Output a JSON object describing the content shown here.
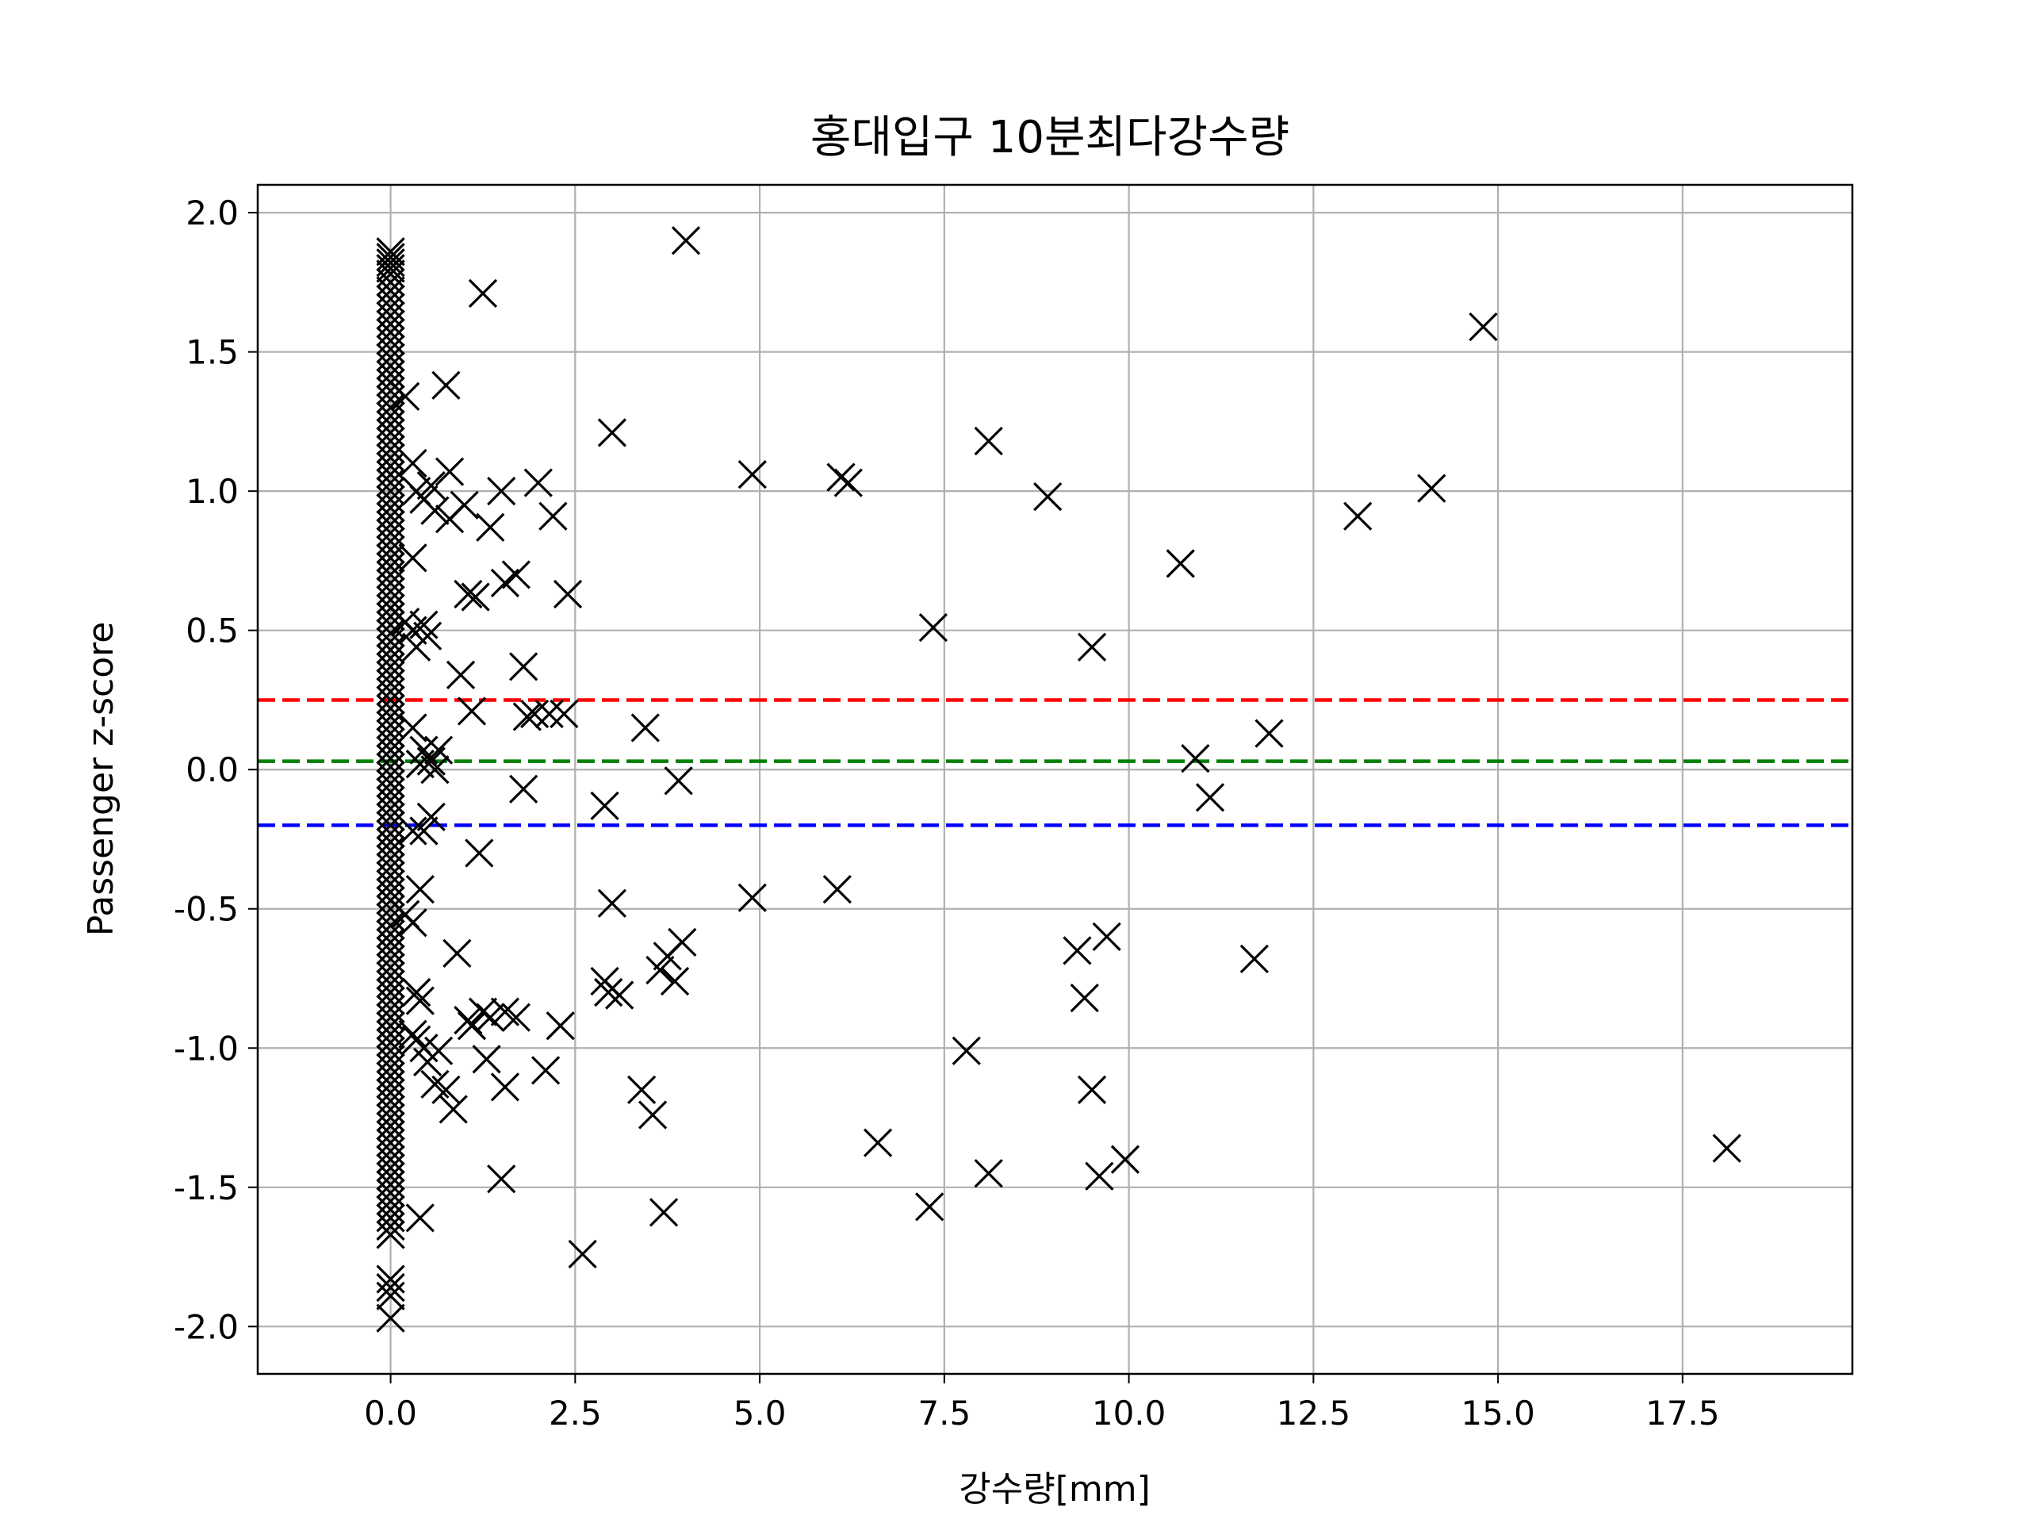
{
  "chart_data": {
    "type": "scatter",
    "title": "홍대입구 10분최다강수량",
    "xlabel": "강수량[mm]",
    "ylabel": "Passenger z-score",
    "xlim": [
      -1.8,
      19.8
    ],
    "ylim": [
      -2.17,
      2.1
    ],
    "xticks": [
      0.0,
      2.5,
      5.0,
      7.5,
      10.0,
      12.5,
      15.0,
      17.5
    ],
    "xtick_labels": [
      "0.0",
      "2.5",
      "5.0",
      "7.5",
      "10.0",
      "12.5",
      "15.0",
      "17.5"
    ],
    "yticks": [
      2.0,
      1.5,
      1.0,
      0.5,
      0.0,
      -0.5,
      -1.0,
      -1.5,
      -2.0
    ],
    "ytick_labels": [
      "2.0",
      "1.5",
      "1.0",
      "0.5",
      "0.0",
      "-0.5",
      "-1.0",
      "-1.5",
      "-2.0"
    ],
    "grid": true,
    "marker": "x",
    "marker_color": "#000000",
    "hlines": [
      {
        "y": 0.25,
        "color": "#ff0000",
        "style": "dashed"
      },
      {
        "y": 0.03,
        "color": "#008000",
        "style": "dashed"
      },
      {
        "y": -0.2,
        "color": "#0000ff",
        "style": "dashed"
      }
    ],
    "zero_cluster": {
      "x": 0.0,
      "y": [
        1.86,
        1.84,
        1.82,
        1.8,
        1.78,
        1.75,
        1.72,
        1.69,
        1.66,
        1.63,
        1.6,
        1.57,
        1.54,
        1.51,
        1.48,
        1.45,
        1.42,
        1.39,
        1.36,
        1.33,
        1.3,
        1.27,
        1.24,
        1.21,
        1.18,
        1.15,
        1.12,
        1.09,
        1.06,
        1.03,
        1.0,
        0.97,
        0.94,
        0.91,
        0.88,
        0.85,
        0.82,
        0.79,
        0.76,
        0.73,
        0.7,
        0.67,
        0.64,
        0.61,
        0.58,
        0.55,
        0.52,
        0.49,
        0.46,
        0.43,
        0.4,
        0.37,
        0.34,
        0.31,
        0.28,
        0.25,
        0.22,
        0.19,
        0.16,
        0.13,
        0.1,
        0.07,
        0.04,
        0.01,
        -0.02,
        -0.05,
        -0.08,
        -0.11,
        -0.14,
        -0.17,
        -0.2,
        -0.23,
        -0.26,
        -0.29,
        -0.32,
        -0.35,
        -0.38,
        -0.41,
        -0.44,
        -0.47,
        -0.5,
        -0.53,
        -0.56,
        -0.59,
        -0.62,
        -0.65,
        -0.68,
        -0.71,
        -0.74,
        -0.77,
        -0.8,
        -0.83,
        -0.86,
        -0.89,
        -0.92,
        -0.95,
        -0.98,
        -1.01,
        -1.04,
        -1.07,
        -1.1,
        -1.13,
        -1.16,
        -1.19,
        -1.22,
        -1.25,
        -1.28,
        -1.31,
        -1.34,
        -1.37,
        -1.4,
        -1.43,
        -1.46,
        -1.49,
        -1.52,
        -1.55,
        -1.58,
        -1.61,
        -1.64,
        -1.67,
        -1.83,
        -1.86,
        -1.89,
        -1.97
      ]
    },
    "series": [
      {
        "points": [
          [
            0.2,
            1.34
          ],
          [
            0.3,
            1.1
          ],
          [
            0.35,
            1.0
          ],
          [
            0.45,
            0.97
          ],
          [
            0.55,
            1.02
          ],
          [
            0.6,
            0.93
          ],
          [
            0.3,
            0.76
          ],
          [
            0.2,
            0.53
          ],
          [
            0.3,
            0.5
          ],
          [
            0.45,
            0.52
          ],
          [
            0.5,
            0.48
          ],
          [
            0.35,
            0.44
          ],
          [
            0.3,
            0.15
          ],
          [
            0.45,
            0.07
          ],
          [
            0.55,
            0.03
          ],
          [
            0.6,
            0.0
          ],
          [
            0.65,
            0.07
          ],
          [
            0.4,
            0.02
          ],
          [
            0.3,
            -0.22
          ],
          [
            0.45,
            -0.22
          ],
          [
            0.55,
            -0.17
          ],
          [
            0.4,
            -0.43
          ],
          [
            0.2,
            -0.52
          ],
          [
            0.3,
            -0.55
          ],
          [
            0.35,
            -0.8
          ],
          [
            0.4,
            -0.83
          ],
          [
            0.3,
            -0.95
          ],
          [
            0.35,
            -0.97
          ],
          [
            0.45,
            -1.0
          ],
          [
            0.5,
            -1.05
          ],
          [
            0.6,
            -1.13
          ],
          [
            0.65,
            -1.01
          ],
          [
            0.75,
            -1.15
          ],
          [
            0.85,
            -1.22
          ],
          [
            0.4,
            -1.61
          ],
          [
            0.75,
            1.38
          ],
          [
            0.8,
            1.07
          ],
          [
            1.0,
            0.95
          ],
          [
            0.8,
            0.9
          ],
          [
            1.5,
            1.0
          ],
          [
            1.35,
            0.87
          ],
          [
            1.25,
            1.71
          ],
          [
            1.05,
            0.63
          ],
          [
            1.15,
            0.62
          ],
          [
            1.55,
            0.67
          ],
          [
            1.7,
            0.7
          ],
          [
            0.95,
            0.34
          ],
          [
            1.1,
            0.21
          ],
          [
            1.8,
            0.37
          ],
          [
            1.85,
            0.19
          ],
          [
            1.95,
            0.2
          ],
          [
            1.8,
            -0.07
          ],
          [
            1.2,
            -0.3
          ],
          [
            0.9,
            -0.66
          ],
          [
            1.05,
            -0.9
          ],
          [
            1.1,
            -0.92
          ],
          [
            1.25,
            -0.87
          ],
          [
            1.35,
            -0.89
          ],
          [
            1.55,
            -0.87
          ],
          [
            1.7,
            -0.89
          ],
          [
            1.3,
            -1.04
          ],
          [
            1.55,
            -1.14
          ],
          [
            1.5,
            -1.47
          ],
          [
            2.0,
            1.03
          ],
          [
            2.2,
            0.91
          ],
          [
            2.4,
            0.63
          ],
          [
            2.35,
            0.2
          ],
          [
            2.15,
            0.2
          ],
          [
            2.3,
            -0.92
          ],
          [
            2.1,
            -1.08
          ],
          [
            2.6,
            -1.74
          ],
          [
            3.0,
            1.21
          ],
          [
            2.9,
            -0.13
          ],
          [
            3.0,
            -0.48
          ],
          [
            2.9,
            -0.76
          ],
          [
            2.95,
            -0.8
          ],
          [
            3.1,
            -0.81
          ],
          [
            3.45,
            0.15
          ],
          [
            3.4,
            -1.15
          ],
          [
            3.55,
            -1.24
          ],
          [
            3.7,
            -1.59
          ],
          [
            3.65,
            -0.72
          ],
          [
            3.75,
            -0.67
          ],
          [
            3.85,
            -0.76
          ],
          [
            3.95,
            -0.62
          ],
          [
            3.9,
            -0.04
          ],
          [
            4.0,
            1.9
          ],
          [
            4.9,
            1.06
          ],
          [
            4.9,
            -0.46
          ],
          [
            6.1,
            1.05
          ],
          [
            6.2,
            1.03
          ],
          [
            6.05,
            -0.43
          ],
          [
            6.6,
            -1.34
          ],
          [
            7.35,
            0.51
          ],
          [
            7.3,
            -1.57
          ],
          [
            7.8,
            -1.01
          ],
          [
            8.1,
            1.18
          ],
          [
            8.1,
            -1.45
          ],
          [
            8.9,
            0.98
          ],
          [
            9.5,
            0.44
          ],
          [
            9.3,
            -0.65
          ],
          [
            9.4,
            -0.82
          ],
          [
            9.5,
            -1.15
          ],
          [
            9.7,
            -0.6
          ],
          [
            9.6,
            -1.46
          ],
          [
            9.95,
            -1.4
          ],
          [
            10.7,
            0.74
          ],
          [
            10.9,
            0.04
          ],
          [
            11.1,
            -0.1
          ],
          [
            11.7,
            -0.68
          ],
          [
            11.9,
            0.13
          ],
          [
            13.1,
            0.91
          ],
          [
            14.1,
            1.01
          ],
          [
            14.8,
            1.59
          ],
          [
            18.1,
            -1.36
          ]
        ]
      }
    ]
  }
}
